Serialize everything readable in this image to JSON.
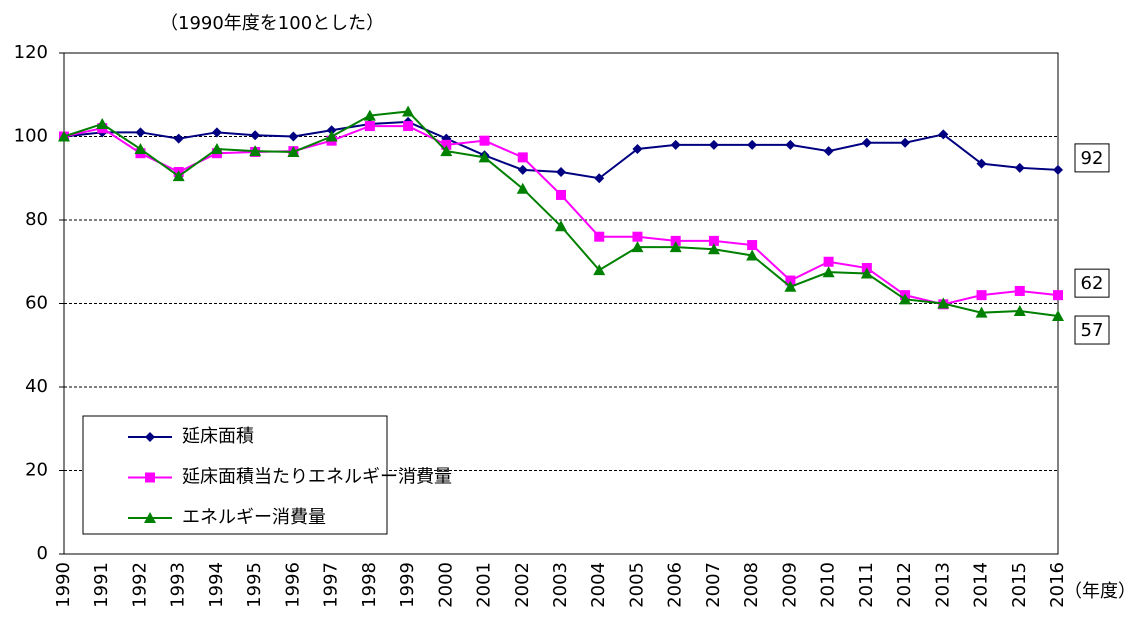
{
  "chart_data": {
    "type": "line",
    "title": "（1990年度を100とした）",
    "x_label": "（年度）",
    "categories": [
      "1990",
      "1991",
      "1992",
      "1993",
      "1994",
      "1995",
      "1996",
      "1997",
      "1998",
      "1999",
      "2000",
      "2001",
      "2002",
      "2003",
      "2004",
      "2005",
      "2006",
      "2007",
      "2008",
      "2009",
      "2010",
      "2011",
      "2012",
      "2013",
      "2014",
      "2015",
      "2016"
    ],
    "ylim": [
      0,
      120
    ],
    "yticks": [
      0,
      20,
      40,
      60,
      80,
      100,
      120
    ],
    "grid": true,
    "legend": "lower left",
    "series": [
      {
        "name": "延床面積",
        "color": "#000080",
        "marker": "diamond",
        "end_label": "92",
        "values": [
          100,
          101,
          101,
          99.5,
          101,
          100.3,
          100,
          101.5,
          103,
          103.5,
          99.5,
          95.5,
          92,
          91.5,
          90,
          97,
          98,
          98,
          98,
          98,
          96.5,
          98.5,
          98.5,
          100.5,
          93.5,
          92.5,
          92
        ]
      },
      {
        "name": "延床面積当たりエネルギー消費量",
        "color": "#ff00ff",
        "marker": "square",
        "end_label": "62",
        "values": [
          100,
          102,
          96,
          91.5,
          96,
          96.3,
          96.5,
          99,
          102.5,
          102.5,
          98,
          99,
          95,
          86,
          76,
          76,
          75,
          75,
          74,
          65.5,
          70,
          68.5,
          62,
          59.8,
          62,
          63,
          62
        ]
      },
      {
        "name": "エネルギー消費量",
        "color": "#008000",
        "marker": "triangle",
        "end_label": "57",
        "values": [
          100,
          103,
          97,
          90.5,
          97,
          96.5,
          96.3,
          100,
          105,
          106,
          96.5,
          95,
          87.5,
          78.5,
          68,
          73.5,
          73.5,
          73,
          71.5,
          64,
          67.5,
          67.2,
          61,
          60,
          57.8,
          58.2,
          57
        ]
      }
    ]
  }
}
